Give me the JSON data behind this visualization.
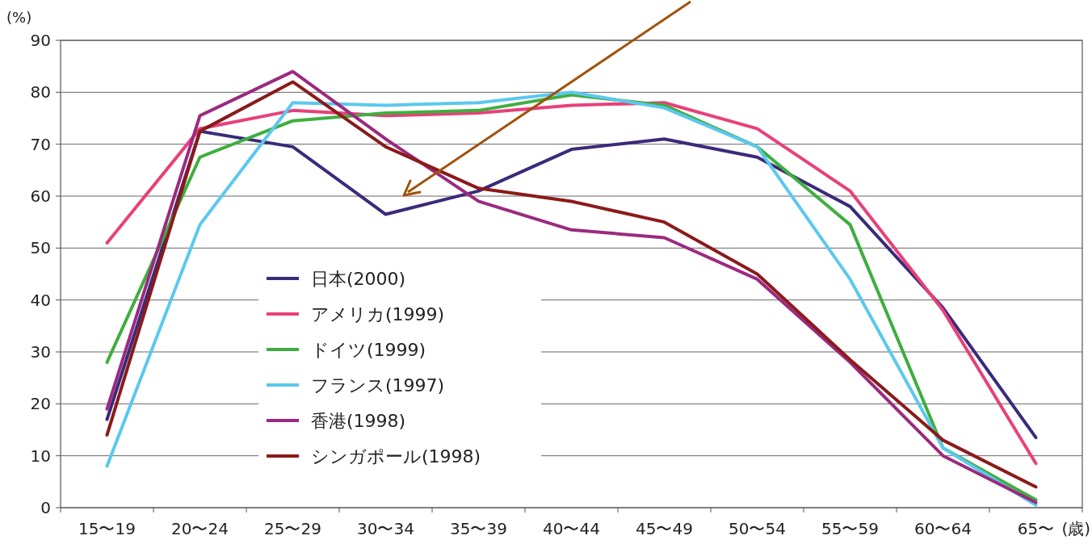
{
  "chart_data": {
    "type": "line",
    "ylabel": "(%)",
    "xlabel": "(歳)",
    "categories": [
      "15〜19",
      "20〜24",
      "25〜29",
      "30〜34",
      "35〜39",
      "40〜44",
      "45〜49",
      "50〜54",
      "55〜59",
      "60〜64",
      "65〜"
    ],
    "series": [
      {
        "name": "日本(2000)",
        "color": "#3b2a7a",
        "values": [
          17,
          72.5,
          69.5,
          56.5,
          61,
          69,
          71,
          67.5,
          58,
          38.5,
          13.5
        ]
      },
      {
        "name": "アメリカ(1999)",
        "color": "#e8407a",
        "values": [
          51,
          73,
          76.5,
          75.5,
          76,
          77.5,
          78,
          73,
          61,
          38,
          8.5
        ]
      },
      {
        "name": "ドイツ(1999)",
        "color": "#3fae3f",
        "values": [
          28,
          67.5,
          74.5,
          76,
          76.5,
          79.5,
          77.5,
          69.5,
          54.5,
          11.5,
          1.5
        ]
      },
      {
        "name": "フランス(1997)",
        "color": "#5bc8ee",
        "values": [
          8,
          54.5,
          78,
          77.5,
          78,
          80,
          77,
          69.5,
          44,
          11.5,
          0.5
        ]
      },
      {
        "name": "香港(1998)",
        "color": "#9b2a7f",
        "values": [
          19,
          75.5,
          84,
          71,
          59,
          53.5,
          52,
          44,
          28,
          10,
          1
        ]
      },
      {
        "name": "シンガポール(1998)",
        "color": "#8b1a1a",
        "values": [
          14,
          72.5,
          82,
          69.5,
          61.5,
          59,
          55,
          45,
          28.5,
          13,
          4
        ]
      }
    ],
    "ylim": [
      0,
      90
    ],
    "yticks": [
      0,
      10,
      20,
      30,
      40,
      50,
      60,
      70,
      80,
      90
    ],
    "grid": "y",
    "legend": "left",
    "marker": "none",
    "line_style": "solid"
  }
}
